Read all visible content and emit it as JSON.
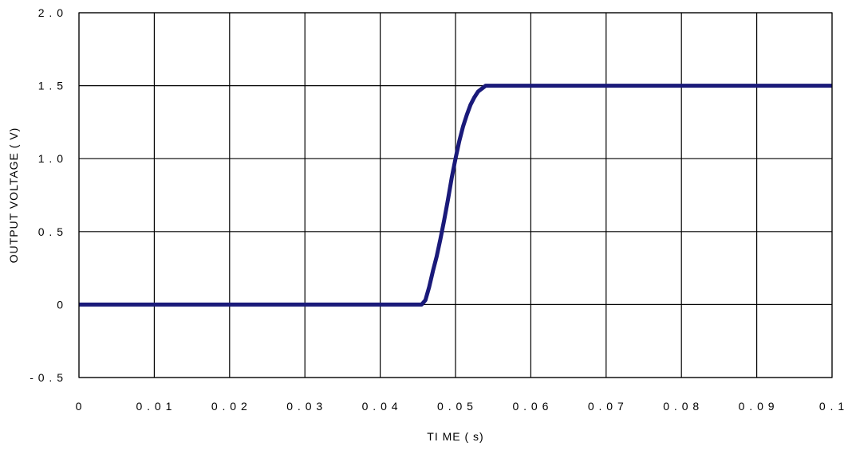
{
  "chart_data": {
    "type": "line",
    "title": "",
    "xlabel": "TI ME ( s)",
    "ylabel": "OUTPUT VOLTAGE ( V)",
    "xlim": [
      0,
      0.1
    ],
    "ylim": [
      -0.5,
      2.0
    ],
    "x_ticks": [
      0,
      0.01,
      0.02,
      0.03,
      0.04,
      0.05,
      0.06,
      0.07,
      0.08,
      0.09,
      0.1
    ],
    "x_tick_labels": [
      "0",
      "0 . 0 1",
      "0 . 0 2",
      "0 . 0 3",
      "0 . 0 4",
      "0 . 0 5",
      "0 . 0 6",
      "0 . 0 7",
      "0 . 0 8",
      "0 . 0 9",
      "0 . 1"
    ],
    "y_ticks": [
      -0.5,
      0,
      0.5,
      1.0,
      1.5,
      2.0
    ],
    "y_tick_labels": [
      "- 0 . 5",
      "0",
      "0 . 5",
      "1 . 0",
      "1 . 5",
      "2 . 0"
    ],
    "grid": true,
    "legend": false,
    "series": [
      {
        "color": "#1a1a7a",
        "x": [
          0,
          0.01,
          0.02,
          0.03,
          0.04,
          0.0455,
          0.046,
          0.0465,
          0.047,
          0.0475,
          0.048,
          0.0485,
          0.049,
          0.0495,
          0.05,
          0.0505,
          0.051,
          0.0515,
          0.052,
          0.0525,
          0.053,
          0.0535,
          0.054,
          0.0545,
          0.06,
          0.07,
          0.08,
          0.09,
          0.1
        ],
        "y": [
          0,
          0,
          0,
          0,
          0,
          0.0,
          0.03,
          0.12,
          0.23,
          0.33,
          0.45,
          0.58,
          0.72,
          0.87,
          1.0,
          1.12,
          1.22,
          1.3,
          1.37,
          1.42,
          1.46,
          1.48,
          1.5,
          1.5,
          1.5,
          1.5,
          1.5,
          1.5,
          1.5
        ]
      }
    ]
  }
}
